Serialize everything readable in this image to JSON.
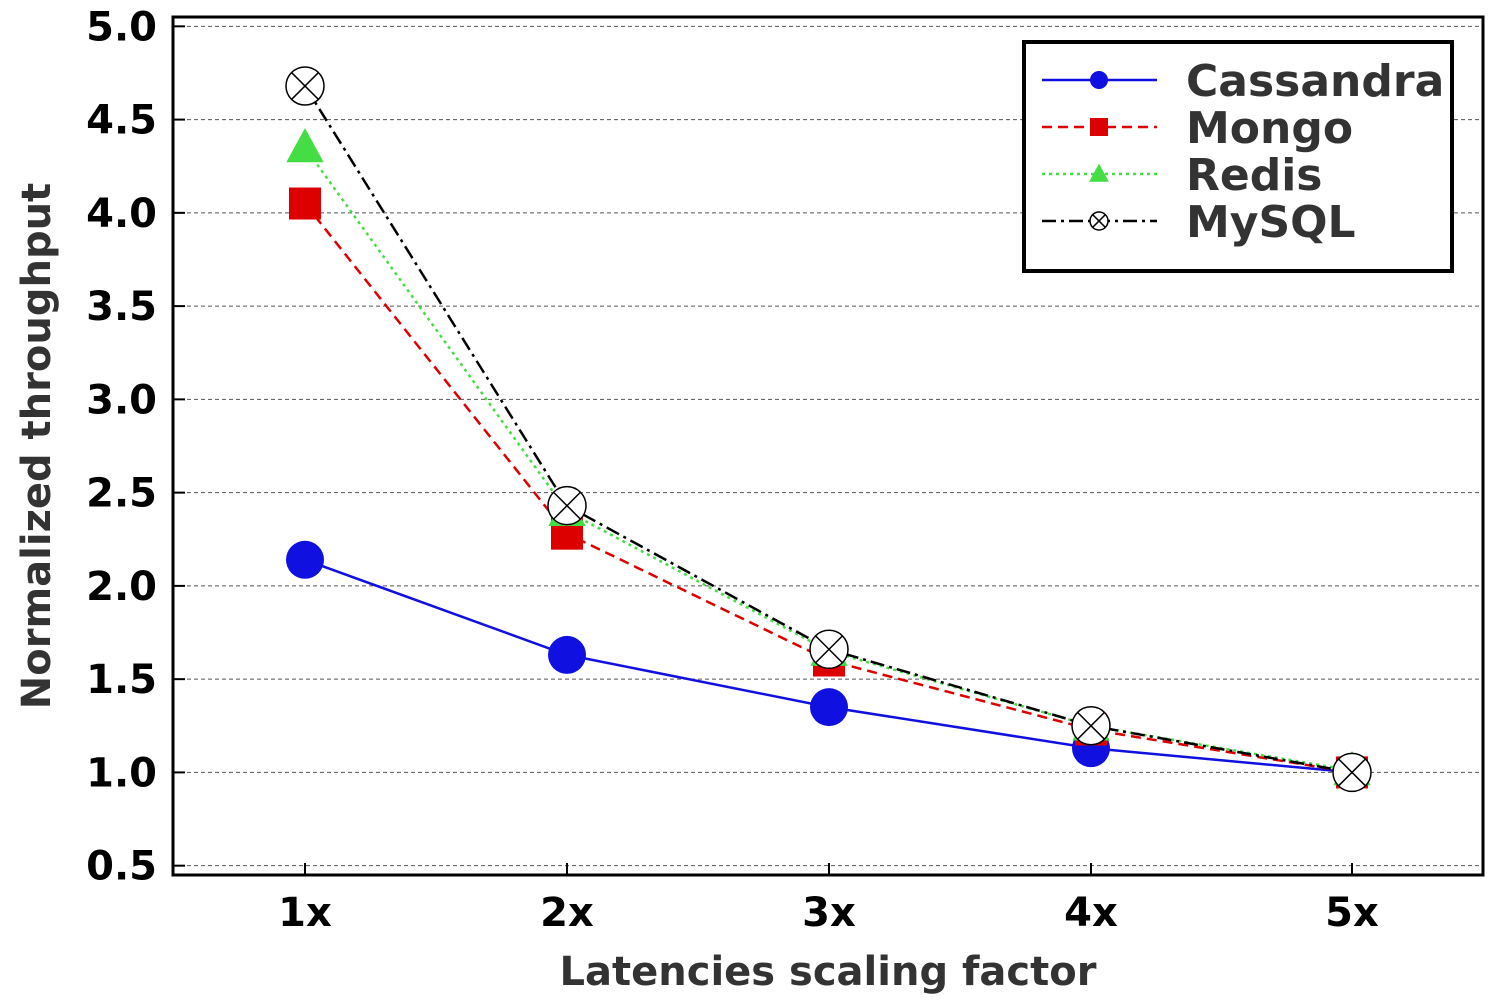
{
  "chart_data": {
    "type": "line",
    "title": "",
    "xlabel": "Latencies scaling factor",
    "ylabel": "Normalized throughput",
    "categories": [
      "1x",
      "2x",
      "3x",
      "4x",
      "5x"
    ],
    "ylim": [
      0.45,
      5.05
    ],
    "yticks": [
      "0.5",
      "1.0",
      "1.5",
      "2.0",
      "2.5",
      "3.0",
      "3.5",
      "4.0",
      "4.5",
      "5.0"
    ],
    "grid": "horizontal dashed",
    "legend_position": "top-right",
    "series": [
      {
        "name": "Cassandra",
        "values": [
          2.14,
          1.63,
          1.35,
          1.13,
          1.0
        ],
        "color": "#1010e0",
        "line": "solid",
        "marker": "circle"
      },
      {
        "name": "Mongo",
        "values": [
          4.05,
          2.28,
          1.6,
          1.23,
          1.0
        ],
        "color": "#dd0000",
        "line": "dashed",
        "marker": "square"
      },
      {
        "name": "Redis",
        "values": [
          4.35,
          2.4,
          1.65,
          1.25,
          1.01
        ],
        "color": "#44dd44",
        "line": "dotted",
        "marker": "triangle"
      },
      {
        "name": "MySQL",
        "values": [
          4.68,
          2.43,
          1.66,
          1.25,
          1.0
        ],
        "color": "#000000",
        "line": "dashdot",
        "marker": "circle-x"
      }
    ]
  }
}
